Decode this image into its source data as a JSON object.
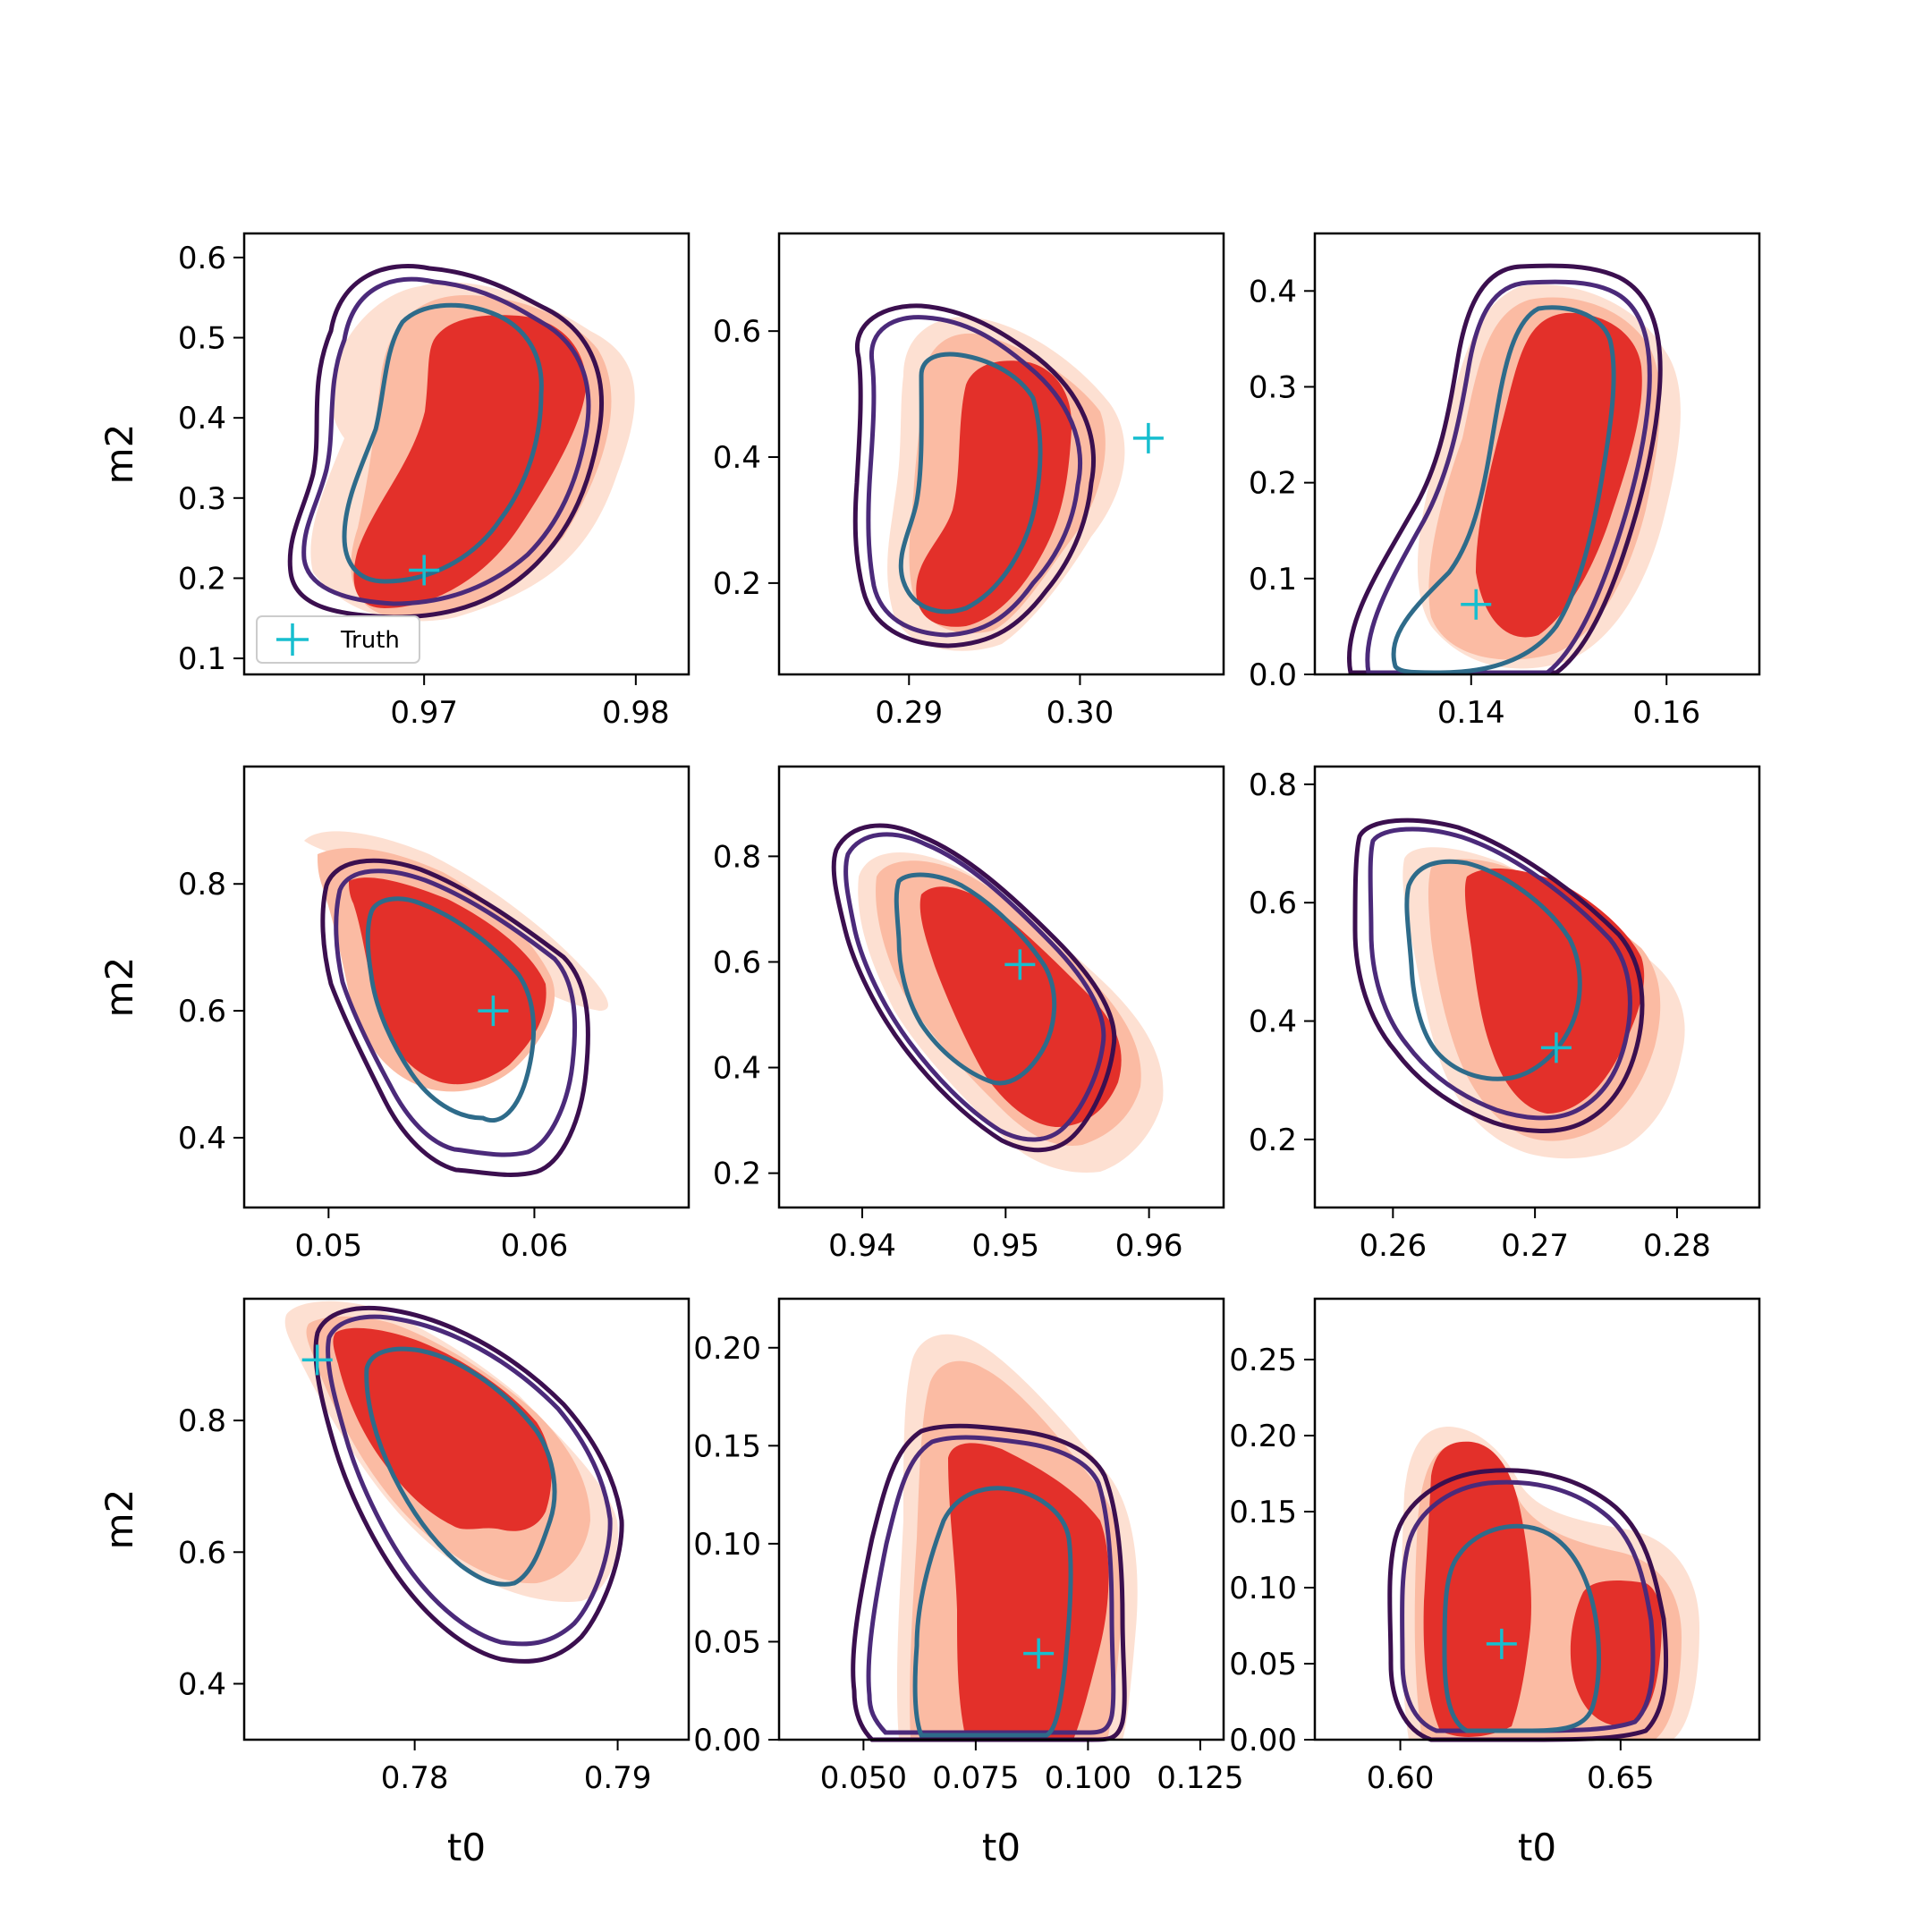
{
  "figure": {
    "xlabel": "t0",
    "ylabel": "m2",
    "legend_label": "Truth"
  },
  "colors": {
    "fill_light": "#fde0d2",
    "fill_mid": "#fbbba3",
    "fill_dark": "#e3302a",
    "contour_outer": "#3b0f4f",
    "contour_mid": "#4b2a7a",
    "contour_inner": "#2e6b8a",
    "truth": "#17becf"
  },
  "chart_data": [
    {
      "type": "contour",
      "xlim": [
        0.9615,
        0.9825
      ],
      "ylim": [
        0.08,
        0.63
      ],
      "xticks": [
        0.97,
        0.98
      ],
      "xtick_labels": [
        "0.97",
        "0.98"
      ],
      "yticks": [
        0.1,
        0.2,
        0.3,
        0.4,
        0.5,
        0.6
      ],
      "ytick_labels": [
        "0.1",
        "0.2",
        "0.3",
        "0.4",
        "0.5",
        "0.6"
      ],
      "truth": [
        0.97,
        0.21
      ],
      "xlabel": "",
      "ylabel": "m2",
      "legend": "Truth"
    },
    {
      "type": "contour",
      "xlim": [
        0.2824,
        0.3084
      ],
      "ylim": [
        0.055,
        0.755
      ],
      "xticks": [
        0.29,
        0.3
      ],
      "xtick_labels": [
        "0.29",
        "0.30"
      ],
      "yticks": [
        0.2,
        0.4,
        0.6
      ],
      "ytick_labels": [
        "0.2",
        "0.4",
        "0.6"
      ],
      "truth": [
        0.304,
        0.43
      ],
      "xlabel": "",
      "ylabel": ""
    },
    {
      "type": "contour",
      "xlim": [
        0.124,
        0.1695
      ],
      "ylim": [
        0.0,
        0.46
      ],
      "xticks": [
        0.14,
        0.16
      ],
      "xtick_labels": [
        "0.14",
        "0.16"
      ],
      "yticks": [
        0.0,
        0.1,
        0.2,
        0.3,
        0.4
      ],
      "ytick_labels": [
        "0.0",
        "0.1",
        "0.2",
        "0.3",
        "0.4"
      ],
      "truth": [
        0.1405,
        0.073
      ],
      "xlabel": "",
      "ylabel": ""
    },
    {
      "type": "contour",
      "xlim": [
        0.0459,
        0.0675
      ],
      "ylim": [
        0.29,
        0.985
      ],
      "xticks": [
        0.05,
        0.06
      ],
      "xtick_labels": [
        "0.05",
        "0.06"
      ],
      "yticks": [
        0.4,
        0.6,
        0.8
      ],
      "ytick_labels": [
        "0.4",
        "0.6",
        "0.8"
      ],
      "truth": [
        0.058,
        0.6
      ],
      "xlabel": "",
      "ylabel": "m2"
    },
    {
      "type": "contour",
      "xlim": [
        0.9342,
        0.9652
      ],
      "ylim": [
        0.135,
        0.97
      ],
      "xticks": [
        0.94,
        0.95,
        0.96
      ],
      "xtick_labels": [
        "0.94",
        "0.95",
        "0.96"
      ],
      "yticks": [
        0.2,
        0.4,
        0.6,
        0.8
      ],
      "ytick_labels": [
        "0.2",
        "0.4",
        "0.6",
        "0.8"
      ],
      "truth": [
        0.951,
        0.595
      ],
      "xlabel": "",
      "ylabel": ""
    },
    {
      "type": "contour",
      "xlim": [
        0.2545,
        0.2858
      ],
      "ylim": [
        0.085,
        0.83
      ],
      "xticks": [
        0.26,
        0.27,
        0.28
      ],
      "xtick_labels": [
        "0.26",
        "0.27",
        "0.28"
      ],
      "yticks": [
        0.2,
        0.4,
        0.6,
        0.8
      ],
      "ytick_labels": [
        "0.2",
        "0.4",
        "0.6",
        "0.8"
      ],
      "truth": [
        0.2715,
        0.355
      ],
      "xlabel": "",
      "ylabel": ""
    },
    {
      "type": "contour",
      "xlim": [
        0.7716,
        0.7935
      ],
      "ylim": [
        0.315,
        0.985
      ],
      "xticks": [
        0.78,
        0.79
      ],
      "xtick_labels": [
        "0.78",
        "0.79"
      ],
      "yticks": [
        0.4,
        0.6,
        0.8
      ],
      "ytick_labels": [
        "0.4",
        "0.6",
        "0.8"
      ],
      "truth": [
        0.7752,
        0.892
      ],
      "xlabel": "t0",
      "ylabel": "m2"
    },
    {
      "type": "contour",
      "xlim": [
        0.0312,
        0.1302
      ],
      "ylim": [
        0.0,
        0.225
      ],
      "xticks": [
        0.05,
        0.075,
        0.1,
        0.125
      ],
      "xtick_labels": [
        "0.050",
        "0.075",
        "0.100",
        "0.125"
      ],
      "yticks": [
        0.0,
        0.05,
        0.1,
        0.15,
        0.2
      ],
      "ytick_labels": [
        "0.00",
        "0.05",
        "0.10",
        "0.15",
        "0.20"
      ],
      "truth": [
        0.089,
        0.044
      ],
      "xlabel": "t0",
      "ylabel": ""
    },
    {
      "type": "contour",
      "xlim": [
        0.5806,
        0.6815
      ],
      "ylim": [
        0.0,
        0.29
      ],
      "xticks": [
        0.6,
        0.65
      ],
      "xtick_labels": [
        "0.60",
        "0.65"
      ],
      "yticks": [
        0.0,
        0.05,
        0.1,
        0.15,
        0.2,
        0.25
      ],
      "ytick_labels": [
        "0.00",
        "0.05",
        "0.10",
        "0.15",
        "0.20",
        "0.25"
      ],
      "truth": [
        0.623,
        0.063
      ],
      "xlabel": "t0",
      "ylabel": ""
    }
  ]
}
